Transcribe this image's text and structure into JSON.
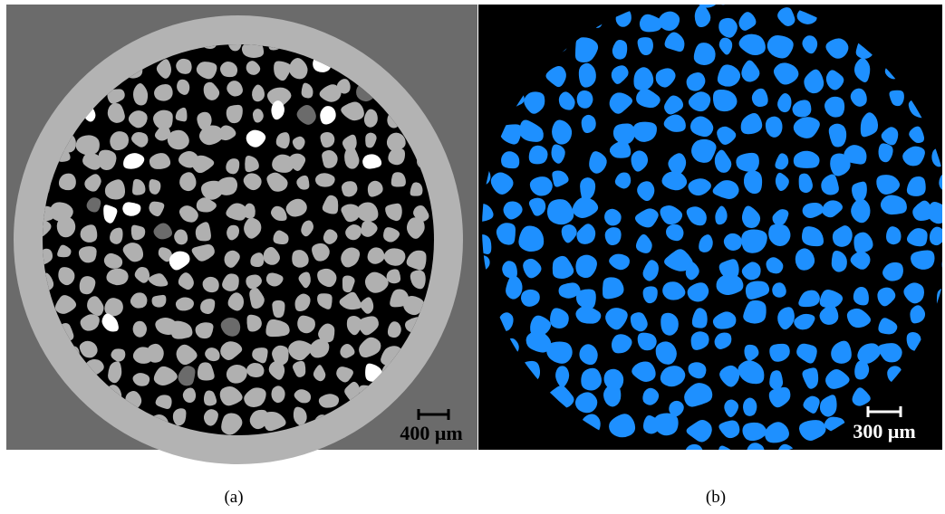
{
  "panels": [
    {
      "label": "(a)",
      "scale_bar": "400 μm"
    },
    {
      "label": "(b)",
      "scale_bar": "300 μm"
    }
  ]
}
